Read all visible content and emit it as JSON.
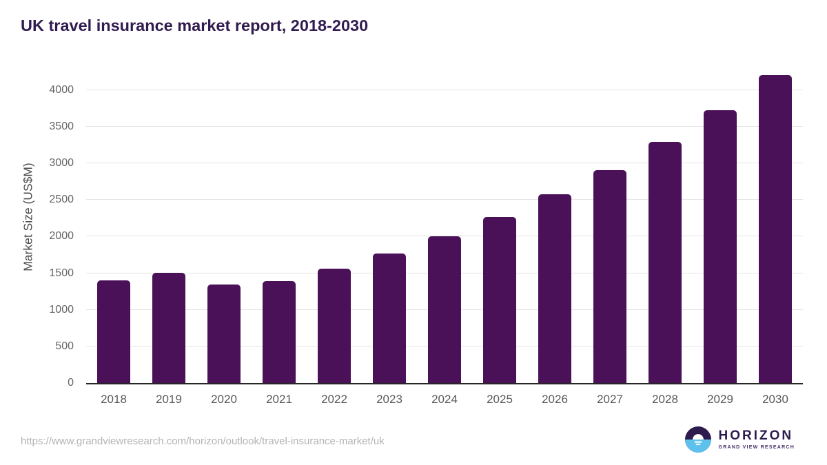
{
  "title": "UK travel insurance market report, 2018-2030",
  "source_url": "https://www.grandviewresearch.com/horizon/outlook/travel-insurance-market/uk",
  "logo": {
    "name": "HORIZON",
    "subtitle": "GRAND VIEW RESEARCH",
    "icon": "horizon-sunrise-circle-icon"
  },
  "colors": {
    "bar": "#4a1158",
    "title_text": "#301b50",
    "axis_line": "#262626",
    "grid": "#e4e4e4",
    "tick_label": "#666666",
    "x_label": "#595959",
    "axis_title": "#4d4d4d",
    "url_text": "#b3b3b3",
    "logo_purple": "#2e1b4e",
    "logo_subtitle": "#473069",
    "logo_blue": "#5ec1ed"
  },
  "chart_data": {
    "type": "bar",
    "title": "UK travel insurance market report, 2018-2030",
    "categories": [
      "2018",
      "2019",
      "2020",
      "2021",
      "2022",
      "2023",
      "2024",
      "2025",
      "2026",
      "2027",
      "2028",
      "2029",
      "2030"
    ],
    "values": [
      1400,
      1505,
      1345,
      1395,
      1565,
      1765,
      2005,
      2270,
      2580,
      2905,
      3295,
      3725,
      4210
    ],
    "xlabel": "",
    "ylabel": "Market Size (US$M)",
    "ylim": [
      0,
      4216
    ],
    "yticks": [
      0,
      500,
      1000,
      1500,
      2000,
      2500,
      3000,
      3500,
      4000
    ],
    "grid": true,
    "legend": "none",
    "bar_color": "#4a1158"
  }
}
